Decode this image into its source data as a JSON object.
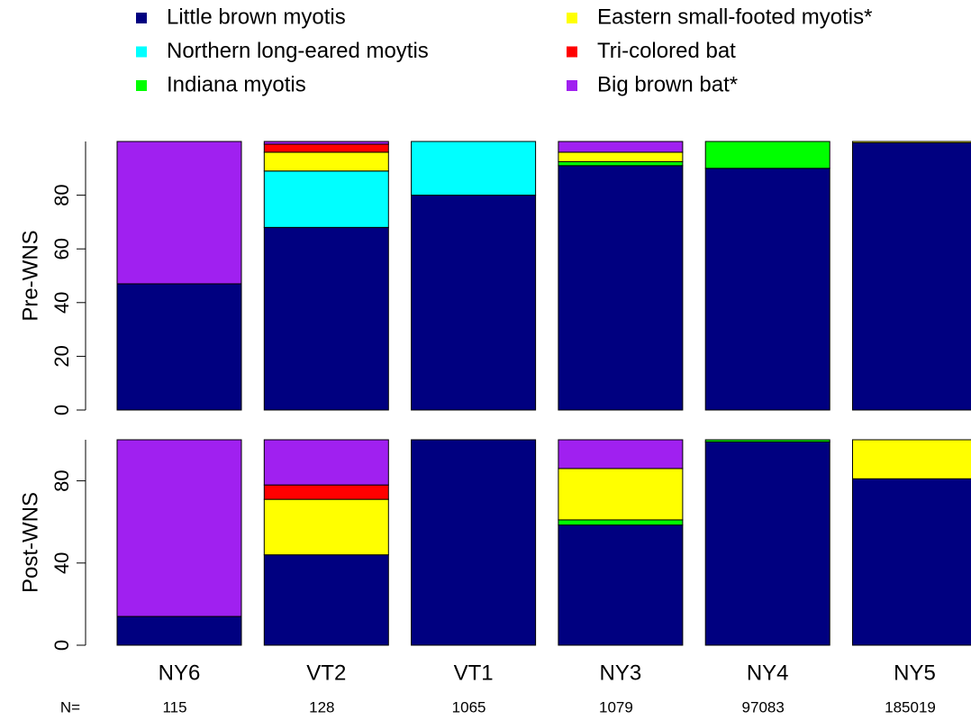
{
  "chart_data": [
    {
      "type": "stacked_bar",
      "ylabel": "Pre-WNS",
      "ylim": [
        0,
        100
      ],
      "yticks": [
        0,
        20,
        40,
        60,
        80
      ],
      "series": [
        {
          "name": "Little brown myotis",
          "color": "#000080",
          "values": [
            47,
            68,
            80,
            91,
            90,
            99.5
          ]
        },
        {
          "name": "Northern long-eared moytis",
          "color": "#00ffff",
          "values": [
            0,
            21,
            20,
            0,
            0,
            0
          ]
        },
        {
          "name": "Indiana myotis",
          "color": "#00ff00",
          "values": [
            0,
            0,
            0,
            1.5,
            10,
            0
          ]
        },
        {
          "name": "Eastern small-footed myotis*",
          "color": "#ffff00",
          "values": [
            0,
            7,
            0,
            3.5,
            0,
            0.5
          ]
        },
        {
          "name": "Tri-colored bat",
          "color": "#ff0000",
          "values": [
            0,
            3,
            0,
            0,
            0,
            0
          ]
        },
        {
          "name": "Big brown bat*",
          "color": "#a020f0",
          "values": [
            53,
            1,
            0,
            4,
            0,
            0
          ]
        }
      ]
    },
    {
      "type": "stacked_bar",
      "ylabel": "Post-WNS",
      "ylim": [
        0,
        100
      ],
      "yticks": [
        0,
        40,
        80
      ],
      "categories": [
        "NY6",
        "VT2",
        "VT1",
        "NY3",
        "NY4",
        "NY5"
      ],
      "n_label": "N=",
      "n_values": [
        115,
        128,
        1065,
        1079,
        97083,
        185019
      ],
      "series": [
        {
          "color": "#000080",
          "values": [
            14,
            44,
            100,
            58.5,
            99,
            81
          ]
        },
        {
          "color": "#00ffff",
          "values": [
            0,
            0,
            0,
            0,
            0,
            0
          ]
        },
        {
          "color": "#00ff00",
          "values": [
            0,
            0,
            0,
            2.5,
            1,
            0
          ]
        },
        {
          "color": "#ffff00",
          "values": [
            0,
            27,
            0,
            25,
            0,
            19
          ]
        },
        {
          "color": "#ff0000",
          "values": [
            0,
            7,
            0,
            0,
            0,
            0
          ]
        },
        {
          "color": "#a020f0",
          "values": [
            86,
            22,
            0,
            14,
            0,
            0
          ]
        }
      ]
    }
  ]
}
